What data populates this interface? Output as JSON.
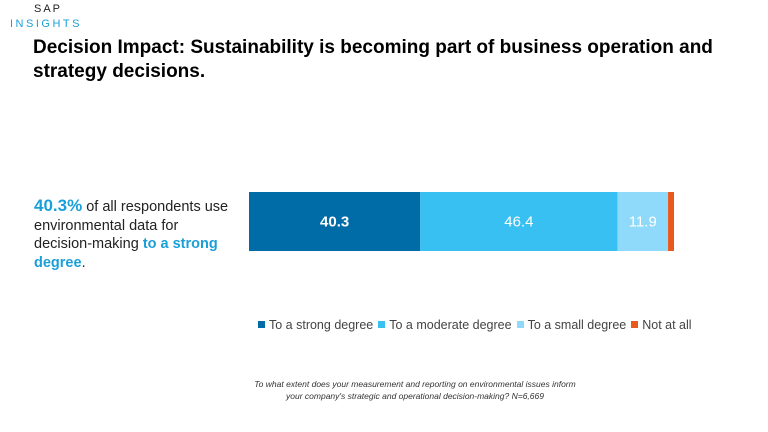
{
  "brand": {
    "line1": "SAP",
    "line2": "INSIGHTS"
  },
  "title": "Decision Impact: Sustainability is becoming part of business operation and strategy decisions.",
  "callout": {
    "pct": "40.3%",
    "text1": " of all respondents use environmental data for decision-making ",
    "strong": "to a strong degree",
    "end": "."
  },
  "chart_data": {
    "type": "bar",
    "orientation": "horizontal-stacked-100",
    "series": [
      {
        "name": "To a strong degree",
        "values": [
          40.3
        ],
        "label": "40.3",
        "color": "#006ca7"
      },
      {
        "name": "To a moderate degree",
        "values": [
          46.4
        ],
        "label": "46.4",
        "color": "#38c0f2"
      },
      {
        "name": "To a small degree",
        "values": [
          11.9
        ],
        "label": "11.9",
        "color": "#8fdafa"
      },
      {
        "name": "Not at all",
        "values": [
          1.4
        ],
        "label": "",
        "color": "#e8591d"
      }
    ],
    "xlim": [
      0,
      100
    ],
    "grid": false,
    "legend_position": "bottom"
  },
  "footnote": "To what extent does your measurement and reporting on environmental issues inform your company's strategic and operational decision-making? N=6,669"
}
